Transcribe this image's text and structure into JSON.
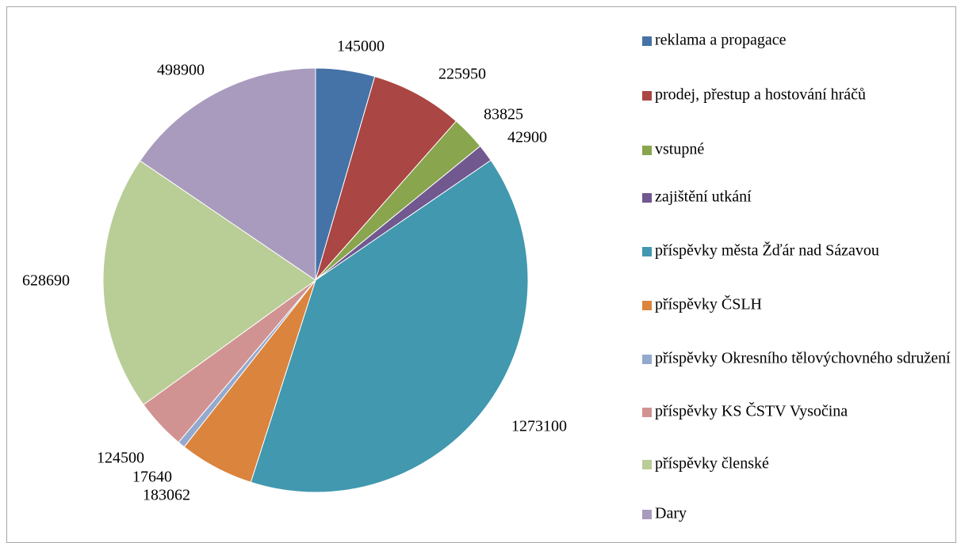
{
  "chart_data": {
    "type": "pie",
    "categories": [
      "reklama a propagace",
      "prodej, přestup a hostování  hráčů",
      "vstupné",
      "zajištění utkání",
      "příspěvky města Žďár nad Sázavou",
      "příspěvky ČSLH",
      "příspěvky Okresního tělovýchovného sdružení",
      "příspěvky KS ČSTV Vysočina",
      "příspěvky členské",
      "Dary"
    ],
    "values": [
      145000,
      225950,
      83825,
      42900,
      1273100,
      183062,
      17640,
      124500,
      628690,
      498900
    ],
    "colors": [
      "#4572a7",
      "#aa4643",
      "#89a54e",
      "#71588f",
      "#4198af",
      "#db843d",
      "#93a9cf",
      "#d19392",
      "#b9cd96",
      "#a99bbd"
    ],
    "legend": "right"
  }
}
